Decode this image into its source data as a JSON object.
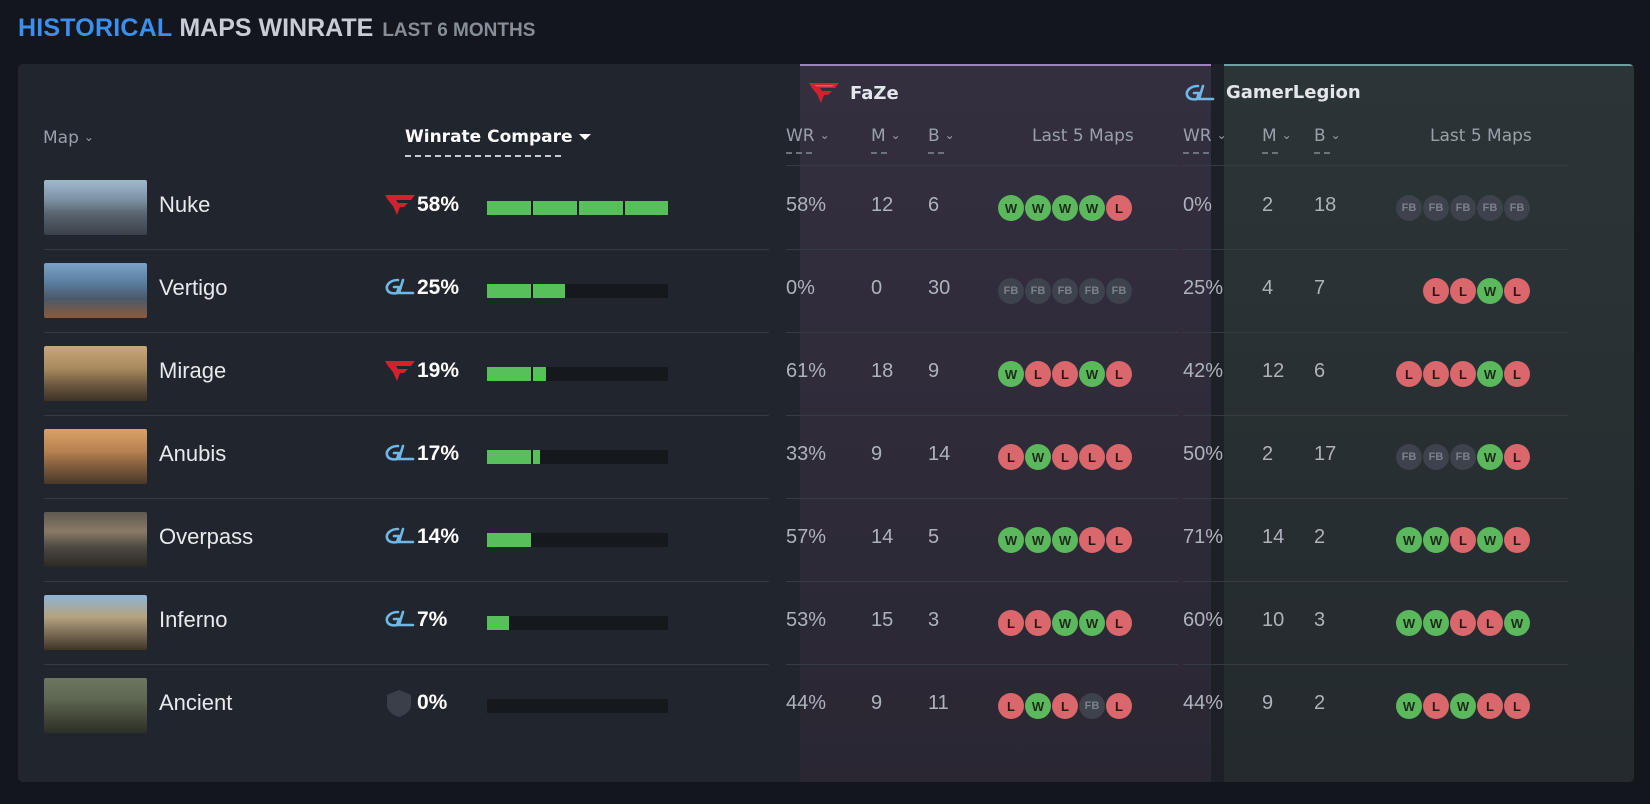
{
  "header": {
    "accent": "HISTORICAL",
    "title": "MAPS WINRATE",
    "subtitle": "LAST 6 MONTHS"
  },
  "columns": {
    "map": "Map",
    "winrate_compare": "Winrate Compare",
    "wr": "WR",
    "m": "M",
    "b": "B",
    "last5": "Last 5 Maps"
  },
  "teams": [
    {
      "name": "FaZe",
      "logo": "faze-logo",
      "color": "#d1222e"
    },
    {
      "name": "GamerLegion",
      "logo": "gl-logo",
      "color": "#6fb7e6"
    }
  ],
  "colors": {
    "bar_fill": "#58c05a",
    "win": "#5cb85c",
    "loss": "#d9676b",
    "accent": "#3a8ff0"
  },
  "rows": [
    {
      "map": "Nuke",
      "leader": "faze",
      "compare": "58%",
      "compare_value": 58,
      "faze": {
        "wr": "58%",
        "m": "12",
        "b": "6",
        "last5": [
          "W",
          "W",
          "W",
          "W",
          "L"
        ]
      },
      "gl": {
        "wr": "0%",
        "m": "2",
        "b": "18",
        "last5": [
          "FB",
          "FB",
          "FB",
          "FB",
          "FB"
        ]
      }
    },
    {
      "map": "Vertigo",
      "leader": "gl",
      "compare": "25%",
      "compare_value": 25,
      "faze": {
        "wr": "0%",
        "m": "0",
        "b": "30",
        "last5": [
          "FB",
          "FB",
          "FB",
          "FB",
          "FB"
        ]
      },
      "gl": {
        "wr": "25%",
        "m": "4",
        "b": "7",
        "last5": [
          "L",
          "L",
          "W",
          "L"
        ]
      }
    },
    {
      "map": "Mirage",
      "leader": "faze",
      "compare": "19%",
      "compare_value": 19,
      "faze": {
        "wr": "61%",
        "m": "18",
        "b": "9",
        "last5": [
          "W",
          "L",
          "L",
          "W",
          "L"
        ]
      },
      "gl": {
        "wr": "42%",
        "m": "12",
        "b": "6",
        "last5": [
          "L",
          "L",
          "L",
          "W",
          "L"
        ]
      }
    },
    {
      "map": "Anubis",
      "leader": "gl",
      "compare": "17%",
      "compare_value": 17,
      "faze": {
        "wr": "33%",
        "m": "9",
        "b": "14",
        "last5": [
          "L",
          "W",
          "L",
          "L",
          "L"
        ]
      },
      "gl": {
        "wr": "50%",
        "m": "2",
        "b": "17",
        "last5": [
          "FB",
          "FB",
          "FB",
          "W",
          "L"
        ]
      }
    },
    {
      "map": "Overpass",
      "leader": "gl",
      "compare": "14%",
      "compare_value": 14,
      "faze": {
        "wr": "57%",
        "m": "14",
        "b": "5",
        "last5": [
          "W",
          "W",
          "W",
          "L",
          "L"
        ]
      },
      "gl": {
        "wr": "71%",
        "m": "14",
        "b": "2",
        "last5": [
          "W",
          "W",
          "L",
          "W",
          "L"
        ]
      }
    },
    {
      "map": "Inferno",
      "leader": "gl",
      "compare": "7%",
      "compare_value": 7,
      "faze": {
        "wr": "53%",
        "m": "15",
        "b": "3",
        "last5": [
          "L",
          "L",
          "W",
          "W",
          "L"
        ]
      },
      "gl": {
        "wr": "60%",
        "m": "10",
        "b": "3",
        "last5": [
          "W",
          "W",
          "L",
          "L",
          "W"
        ]
      }
    },
    {
      "map": "Ancient",
      "leader": "none",
      "compare": "0%",
      "compare_value": 0,
      "faze": {
        "wr": "44%",
        "m": "9",
        "b": "11",
        "last5": [
          "L",
          "W",
          "L",
          "FB",
          "L"
        ]
      },
      "gl": {
        "wr": "44%",
        "m": "9",
        "b": "2",
        "last5": [
          "W",
          "L",
          "W",
          "L",
          "L"
        ]
      }
    }
  ]
}
